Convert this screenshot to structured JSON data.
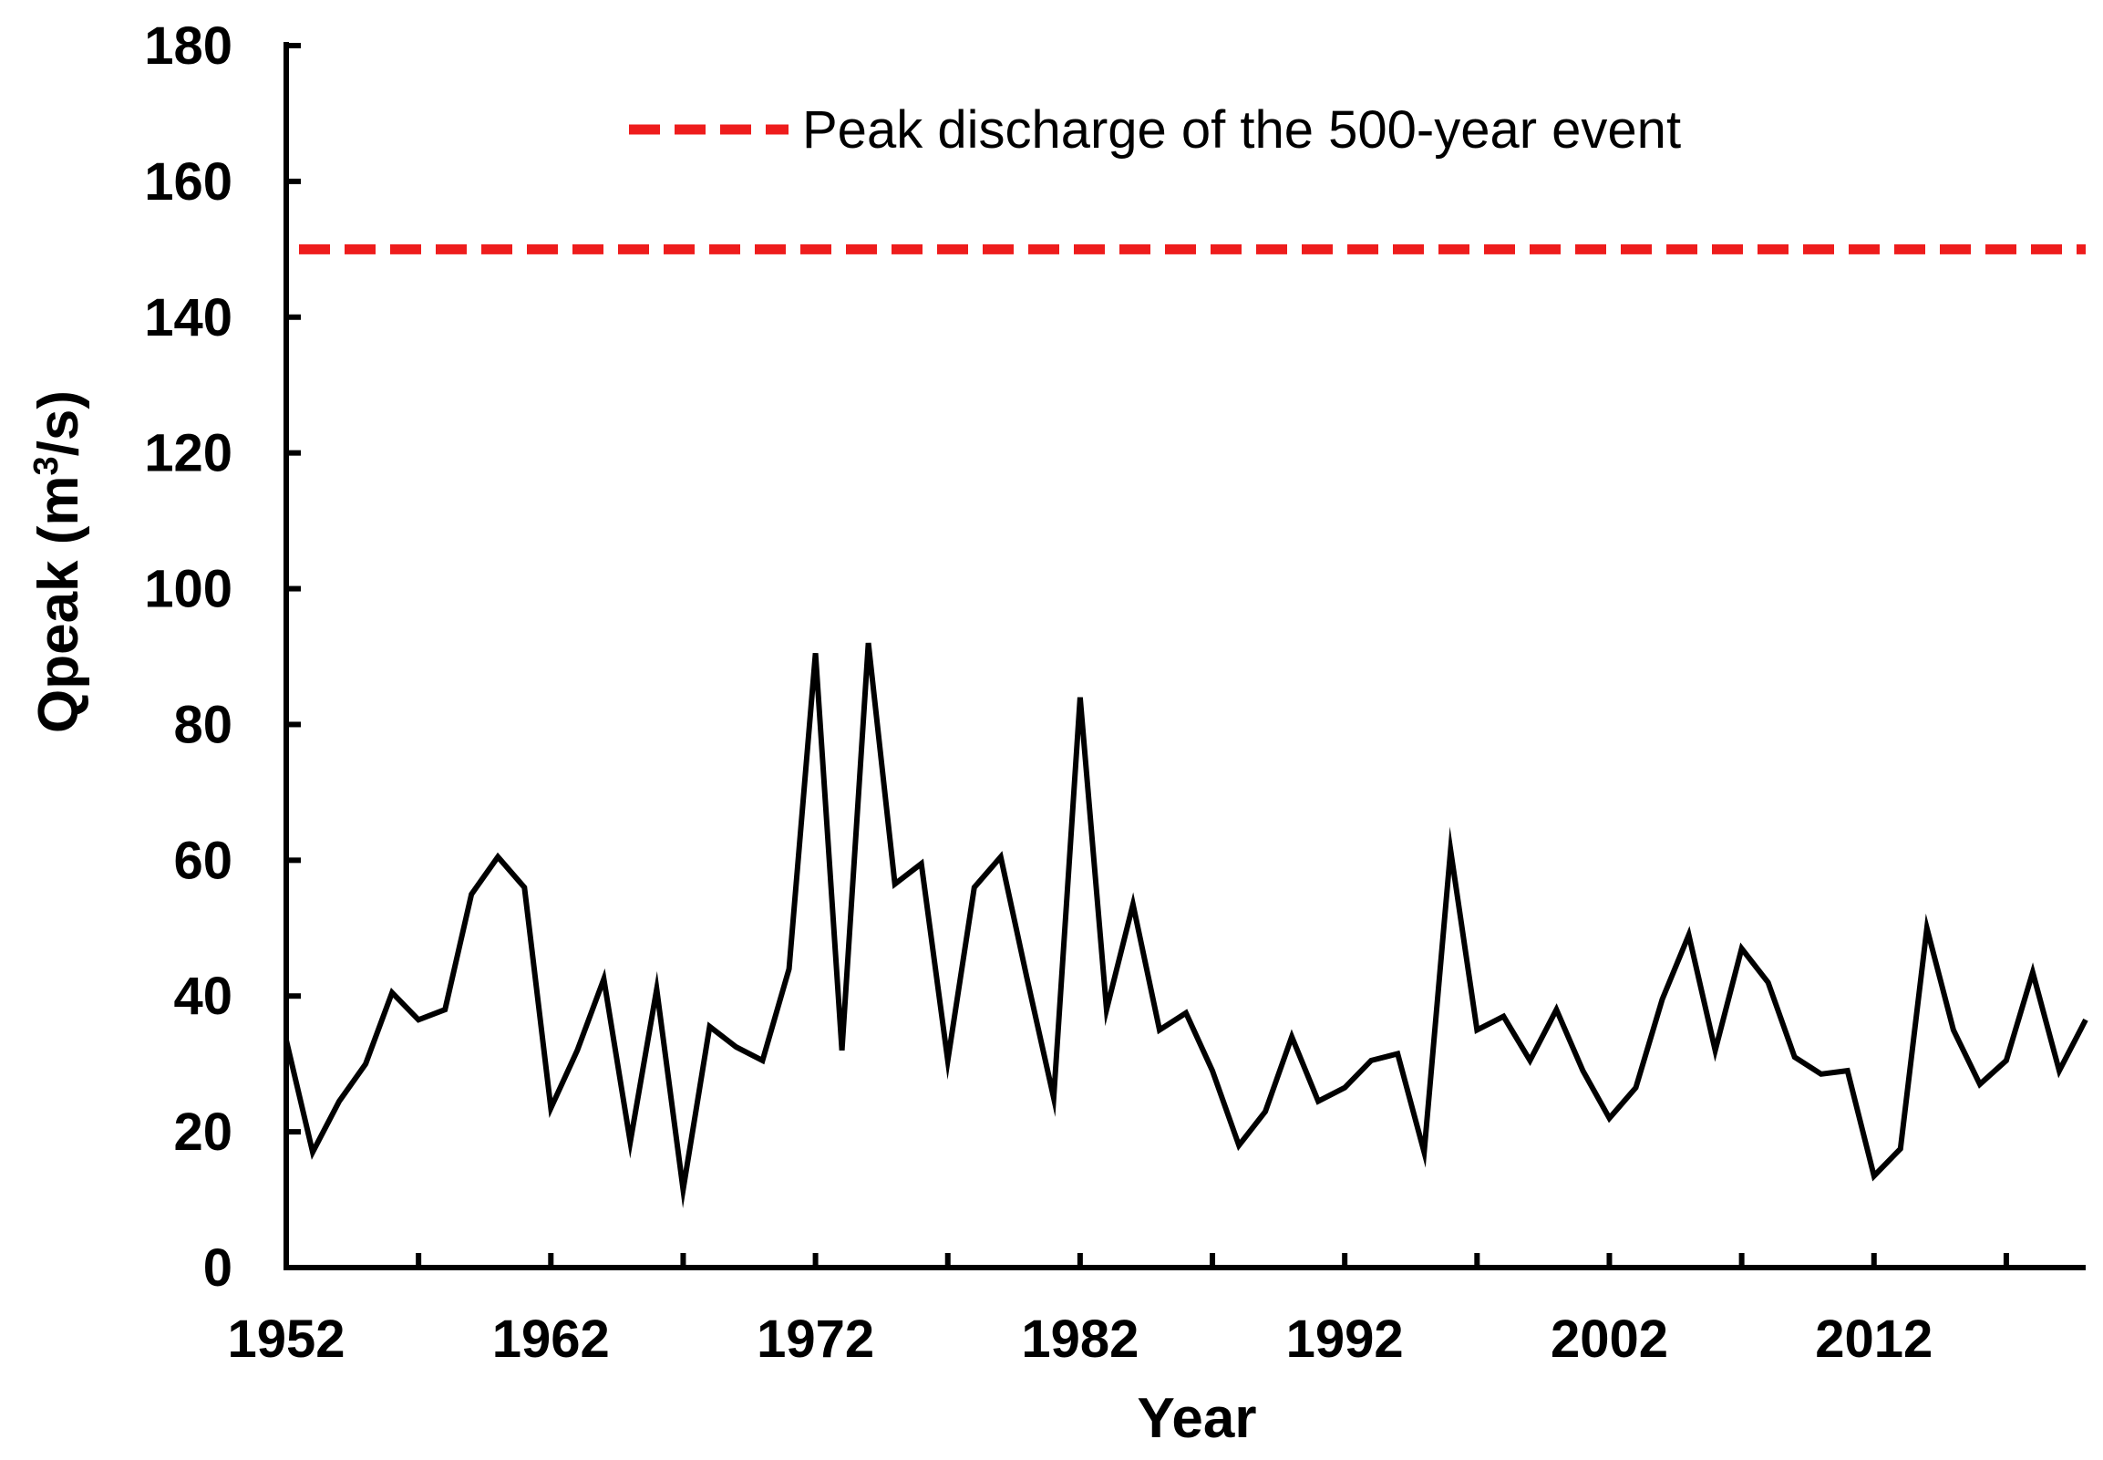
{
  "chart_data": {
    "type": "line",
    "xlabel": "Year",
    "ylabel": "Qpeak (m",
    "ylabel_sup": "3",
    "ylabel_suffix": "/s)",
    "xlim": [
      1952,
      2020
    ],
    "ylim": [
      0,
      180
    ],
    "yticks": [
      0,
      20,
      40,
      60,
      80,
      100,
      120,
      140,
      160,
      180
    ],
    "xtick_labels": [
      1952,
      1962,
      1972,
      1982,
      1992,
      2002,
      2012
    ],
    "xtick_minor": [
      1957,
      1967,
      1977,
      1987,
      1997,
      2007,
      2017
    ],
    "grid": false,
    "legend_position": "top",
    "series": [
      {
        "name": "Qpeak",
        "color": "#000000",
        "x": [
          1952,
          1953,
          1954,
          1955,
          1956,
          1957,
          1958,
          1959,
          1960,
          1961,
          1962,
          1963,
          1964,
          1965,
          1966,
          1967,
          1968,
          1969,
          1970,
          1971,
          1972,
          1973,
          1974,
          1975,
          1976,
          1977,
          1978,
          1979,
          1980,
          1981,
          1982,
          1983,
          1984,
          1985,
          1986,
          1987,
          1988,
          1989,
          1990,
          1991,
          1992,
          1993,
          1994,
          1995,
          1996,
          1997,
          1998,
          1999,
          2000,
          2001,
          2002,
          2003,
          2004,
          2005,
          2006,
          2007,
          2008,
          2009,
          2010,
          2011,
          2012,
          2013,
          2014,
          2015,
          2016,
          2017,
          2018,
          2019,
          2020
        ],
        "values": [
          33.5,
          17,
          24.5,
          30,
          40.5,
          36.5,
          38,
          55,
          60.5,
          56,
          23.5,
          32,
          42.5,
          18.5,
          41,
          11.5,
          35.5,
          32.5,
          30.5,
          44,
          90.5,
          32,
          92,
          56.5,
          59.5,
          30.5,
          56,
          60.5,
          42.5,
          25,
          84,
          38,
          53.5,
          35,
          37.5,
          29,
          18,
          23,
          34,
          24.5,
          26.5,
          30.5,
          31.5,
          17,
          61.5,
          35,
          37,
          30.5,
          38,
          29,
          22,
          26.5,
          39.5,
          49,
          32,
          47,
          42,
          31,
          28.5,
          29,
          13.5,
          17.5,
          50,
          35,
          27,
          30.5,
          43.5,
          29,
          36.5
        ]
      }
    ],
    "reference_line": {
      "label": "Peak discharge of the 500-year event",
      "value": 150,
      "color": "#ee1c1c"
    }
  }
}
